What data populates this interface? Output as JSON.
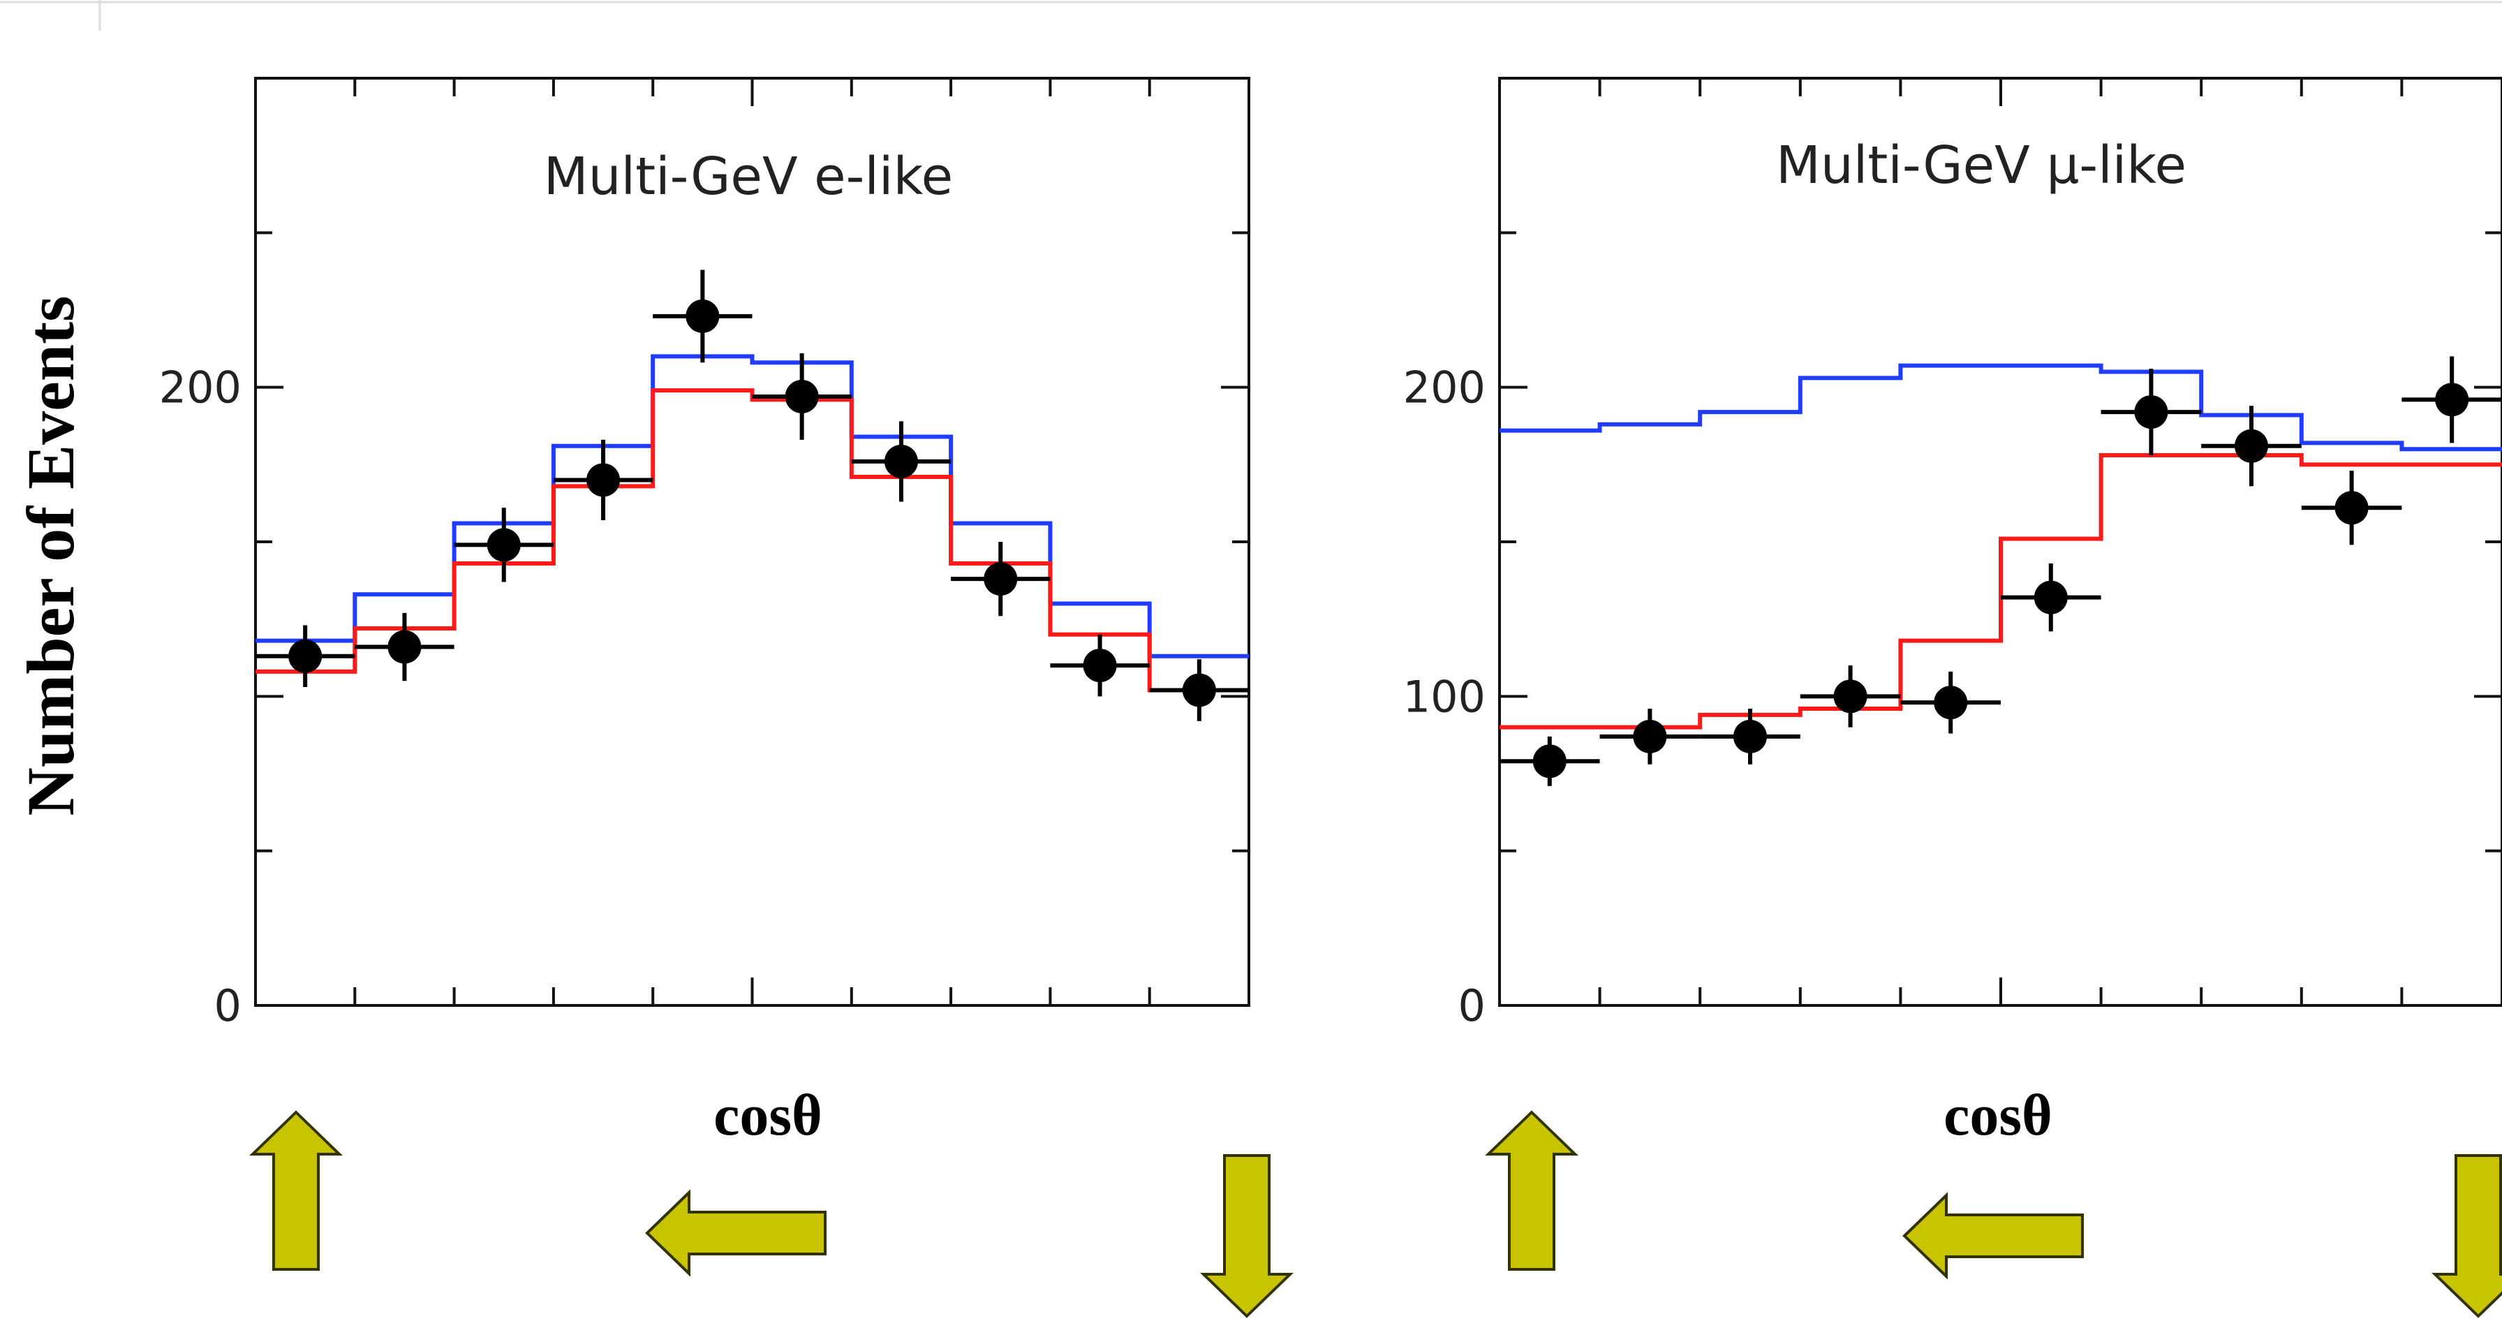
{
  "chart_data": [
    {
      "type": "line",
      "title": "Multi-GeV  e-like",
      "ylabel": "Number of Events",
      "xlabel": "cosθ",
      "xlim": [
        -1,
        1
      ],
      "ylim": [
        0,
        300
      ],
      "yticks": [
        0,
        200
      ],
      "bin_edges": [
        -1,
        -0.8,
        -0.6,
        -0.4,
        -0.2,
        0,
        0.2,
        0.4,
        0.6,
        0.8,
        1
      ],
      "series": [
        {
          "color": "#1f3cff",
          "kind": "step",
          "values": [
            118,
            133,
            156,
            181,
            210,
            208,
            184,
            156,
            130,
            113
          ]
        },
        {
          "color": "#ff1a1a",
          "kind": "step",
          "values": [
            108,
            122,
            143,
            168,
            199,
            196,
            171,
            143,
            120,
            102
          ]
        },
        {
          "color": "#000000",
          "kind": "points",
          "x": [
            -0.9,
            -0.7,
            -0.5,
            -0.3,
            -0.1,
            0.1,
            0.3,
            0.5,
            0.7,
            0.9
          ],
          "values": [
            113,
            116,
            149,
            170,
            223,
            197,
            176,
            138,
            110,
            102
          ],
          "errors": [
            10,
            11,
            12,
            13,
            15,
            14,
            13,
            12,
            10,
            10
          ]
        }
      ],
      "arrows": [
        "up",
        "left",
        "down"
      ]
    },
    {
      "type": "line",
      "title": "Multi-GeV μ-like",
      "ylabel": "",
      "xlabel": "cosθ",
      "xlim": [
        -1,
        1
      ],
      "ylim": [
        0,
        300
      ],
      "yticks": [
        0,
        100,
        200
      ],
      "bin_edges": [
        -1,
        -0.8,
        -0.6,
        -0.4,
        -0.2,
        0,
        0.2,
        0.4,
        0.6,
        0.8,
        1
      ],
      "series": [
        {
          "color": "#1f3cff",
          "kind": "step",
          "values": [
            186,
            188,
            192,
            203,
            207,
            207,
            205,
            191,
            182,
            180
          ]
        },
        {
          "color": "#ff1a1a",
          "kind": "step",
          "values": [
            90,
            90,
            94,
            96,
            118,
            151,
            178,
            178,
            175,
            175
          ]
        },
        {
          "color": "#000000",
          "kind": "points",
          "x": [
            -0.9,
            -0.7,
            -0.5,
            -0.3,
            -0.1,
            0.1,
            0.3,
            0.5,
            0.7,
            0.9
          ],
          "values": [
            79,
            87,
            87,
            100,
            98,
            132,
            192,
            181,
            161,
            196
          ],
          "errors": [
            8,
            9,
            9,
            10,
            10,
            11,
            14,
            13,
            12,
            14
          ]
        }
      ],
      "arrows": [
        "up",
        "left",
        "down"
      ]
    }
  ]
}
